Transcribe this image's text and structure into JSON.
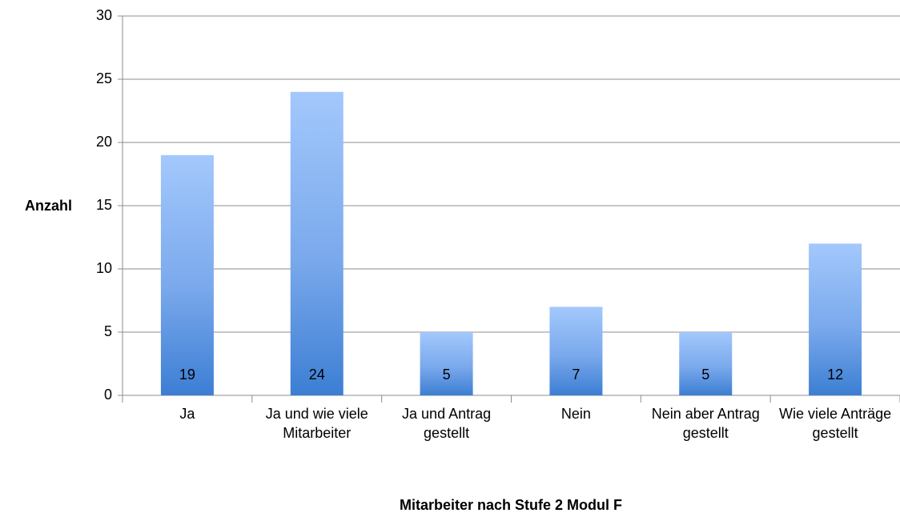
{
  "chart_data": {
    "type": "bar",
    "categories": [
      "Ja",
      "Ja und wie viele Mitarbeiter",
      "Ja und Antrag gestellt",
      "Nein",
      "Nein aber Antrag gestellt",
      "Wie viele Anträge gestellt"
    ],
    "values": [
      19,
      24,
      5,
      7,
      5,
      12
    ],
    "color": "#3c7ed3",
    "x_label": "Mitarbeiter nach Stufe 2 Modul F",
    "y_label": "Anzahl",
    "ylim": [
      0,
      30
    ],
    "yticks": [
      0,
      5,
      10,
      15,
      20,
      25,
      30
    ],
    "grid": true
  }
}
